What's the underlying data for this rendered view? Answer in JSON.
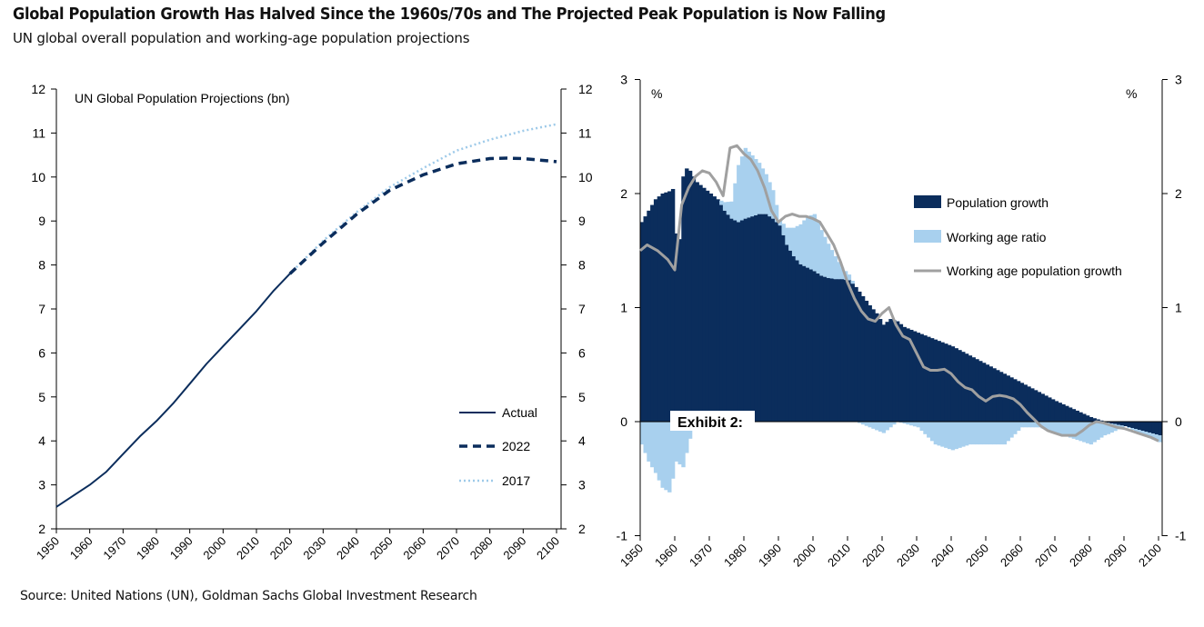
{
  "header": {
    "title": "Global Population Growth Has Halved Since the 1960s/70s and The Projected Peak Population is Now Falling",
    "subtitle": "UN global overall population and working-age population projections"
  },
  "footer": {
    "source": "Source: United Nations (UN), Goldman Sachs Global Investment Research"
  },
  "exhibit_label": "Exhibit 2:",
  "chart_data": [
    {
      "type": "line",
      "title": "UN Global Population Projections (bn)",
      "xlabel": "",
      "ylabel": "",
      "xlim": [
        1950,
        2100
      ],
      "ylim": [
        2,
        12
      ],
      "x_ticks": [
        "1950",
        "1960",
        "1970",
        "1980",
        "1990",
        "2000",
        "2010",
        "2020",
        "2030",
        "2040",
        "2050",
        "2060",
        "2070",
        "2080",
        "2090",
        "2100"
      ],
      "y_ticks": [
        "2",
        "3",
        "4",
        "5",
        "6",
        "7",
        "8",
        "9",
        "10",
        "11",
        "12"
      ],
      "legend_position": "bottom-right",
      "colors": {
        "actual": "#0b2d5c",
        "p2022": "#0b2d5c",
        "p2017": "#9ecae9"
      },
      "series": [
        {
          "name": "Actual",
          "style": "solid",
          "x": [
            1950,
            1955,
            1960,
            1965,
            1970,
            1975,
            1980,
            1985,
            1990,
            1995,
            2000,
            2005,
            2010,
            2015,
            2020
          ],
          "values": [
            2.5,
            2.75,
            3.0,
            3.3,
            3.7,
            4.1,
            4.45,
            4.85,
            5.3,
            5.75,
            6.15,
            6.55,
            6.95,
            7.4,
            7.8
          ]
        },
        {
          "name": "2022",
          "style": "dashed",
          "x": [
            2020,
            2030,
            2040,
            2050,
            2060,
            2070,
            2080,
            2085,
            2090,
            2100
          ],
          "values": [
            7.8,
            8.5,
            9.15,
            9.7,
            10.05,
            10.3,
            10.42,
            10.43,
            10.42,
            10.35
          ]
        },
        {
          "name": "2017",
          "style": "dotted",
          "x": [
            2020,
            2030,
            2040,
            2050,
            2060,
            2070,
            2080,
            2090,
            2100
          ],
          "values": [
            7.8,
            8.55,
            9.2,
            9.77,
            10.2,
            10.6,
            10.85,
            11.05,
            11.2
          ]
        }
      ]
    },
    {
      "type": "area",
      "title": "",
      "xlim": [
        1950,
        2100
      ],
      "ylim": [
        -1,
        3
      ],
      "y_unit_left": "%",
      "y_unit_right": "%",
      "x_ticks": [
        "1950",
        "1960",
        "1970",
        "1980",
        "1990",
        "2000",
        "2010",
        "2020",
        "2030",
        "2040",
        "2050",
        "2060",
        "2070",
        "2080",
        "2090",
        "2100"
      ],
      "y_ticks": [
        "-1",
        "0",
        "1",
        "2",
        "3"
      ],
      "legend_position": "right",
      "colors": {
        "population_growth": "#0b2d5c",
        "working_age_ratio": "#a8d0ee",
        "working_age_population_growth": "#a0a0a0"
      },
      "series": [
        {
          "name": "Population growth",
          "kind": "bar",
          "x": [
            1950,
            1952,
            1954,
            1956,
            1958,
            1959,
            1960,
            1961,
            1962,
            1963,
            1964,
            1966,
            1968,
            1970,
            1972,
            1974,
            1976,
            1978,
            1980,
            1982,
            1984,
            1986,
            1988,
            1990,
            1992,
            1994,
            1996,
            1998,
            2000,
            2002,
            2004,
            2006,
            2008,
            2010,
            2012,
            2014,
            2016,
            2018,
            2020,
            2022,
            2024,
            2026,
            2030,
            2035,
            2040,
            2045,
            2050,
            2055,
            2060,
            2065,
            2070,
            2075,
            2080,
            2085,
            2090,
            2095,
            2100
          ],
          "values": [
            1.75,
            1.85,
            1.95,
            2.0,
            2.02,
            2.04,
            1.65,
            1.6,
            2.15,
            2.22,
            2.2,
            2.1,
            2.05,
            2.0,
            1.95,
            1.85,
            1.78,
            1.75,
            1.78,
            1.8,
            1.82,
            1.82,
            1.78,
            1.72,
            1.55,
            1.45,
            1.38,
            1.35,
            1.32,
            1.28,
            1.26,
            1.25,
            1.25,
            1.24,
            1.18,
            1.1,
            1.02,
            0.95,
            0.85,
            0.9,
            0.88,
            0.83,
            0.78,
            0.72,
            0.66,
            0.58,
            0.5,
            0.42,
            0.34,
            0.26,
            0.18,
            0.11,
            0.04,
            -0.01,
            -0.04,
            -0.08,
            -0.12
          ]
        },
        {
          "name": "Working age ratio",
          "kind": "bar",
          "x": [
            1950,
            1952,
            1954,
            1956,
            1958,
            1959,
            1960,
            1962,
            1964,
            1966,
            1968,
            1972,
            1976,
            1978,
            1980,
            1984,
            1988,
            1990,
            1994,
            1998,
            2000,
            2004,
            2008,
            2012,
            2016,
            2020,
            2024,
            2030,
            2035,
            2040,
            2045,
            2050,
            2055,
            2060,
            2065,
            2070,
            2075,
            2080,
            2085,
            2090,
            2095,
            2100
          ],
          "values": [
            -0.2,
            -0.35,
            -0.45,
            -0.58,
            -0.62,
            -0.5,
            -0.35,
            -0.4,
            -0.15,
            0.0,
            0.0,
            0.0,
            0.15,
            0.5,
            0.62,
            0.45,
            0.25,
            0.05,
            0.25,
            0.45,
            0.5,
            0.3,
            0.1,
            0.0,
            -0.05,
            -0.1,
            0.0,
            -0.05,
            -0.2,
            -0.25,
            -0.2,
            -0.2,
            -0.2,
            -0.05,
            -0.05,
            -0.1,
            -0.15,
            -0.2,
            -0.1,
            0.0,
            -0.04,
            -0.06
          ]
        },
        {
          "name": "Working age population growth",
          "kind": "line",
          "x": [
            1950,
            1952,
            1955,
            1958,
            1960,
            1962,
            1964,
            1966,
            1968,
            1970,
            1972,
            1974,
            1976,
            1978,
            1980,
            1982,
            1984,
            1986,
            1988,
            1990,
            1992,
            1994,
            1996,
            1998,
            2000,
            2002,
            2004,
            2006,
            2008,
            2010,
            2012,
            2014,
            2016,
            2018,
            2020,
            2022,
            2024,
            2026,
            2028,
            2030,
            2032,
            2034,
            2036,
            2038,
            2040,
            2042,
            2044,
            2046,
            2048,
            2050,
            2052,
            2054,
            2056,
            2058,
            2060,
            2062,
            2064,
            2066,
            2068,
            2070,
            2072,
            2074,
            2076,
            2078,
            2080,
            2082,
            2084,
            2086,
            2088,
            2090,
            2092,
            2094,
            2096,
            2098,
            2100
          ],
          "values": [
            1.5,
            1.55,
            1.5,
            1.42,
            1.33,
            1.9,
            2.05,
            2.15,
            2.2,
            2.18,
            2.1,
            1.98,
            2.4,
            2.42,
            2.35,
            2.3,
            2.2,
            2.05,
            1.85,
            1.75,
            1.8,
            1.82,
            1.8,
            1.8,
            1.78,
            1.75,
            1.65,
            1.55,
            1.4,
            1.22,
            1.08,
            0.97,
            0.9,
            0.88,
            0.95,
            1.0,
            0.85,
            0.75,
            0.72,
            0.6,
            0.48,
            0.45,
            0.45,
            0.46,
            0.42,
            0.35,
            0.3,
            0.28,
            0.22,
            0.18,
            0.22,
            0.23,
            0.22,
            0.2,
            0.15,
            0.08,
            0.02,
            -0.04,
            -0.08,
            -0.1,
            -0.12,
            -0.12,
            -0.12,
            -0.08,
            -0.03,
            0.0,
            -0.01,
            -0.03,
            -0.05,
            -0.06,
            -0.08,
            -0.1,
            -0.12,
            -0.14,
            -0.17
          ]
        }
      ]
    }
  ]
}
